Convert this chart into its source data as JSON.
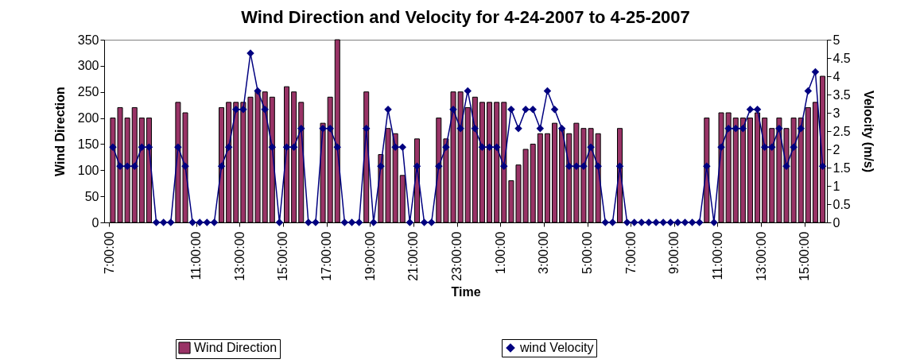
{
  "chart_data": {
    "type": "bar",
    "title": "Wind Direction and Velocity for 4-24-2007 to 4-25-2007",
    "xlabel": "Time",
    "ylabel": "Wind Direction",
    "y2label": "Velocity (m/s)",
    "x": [
      "2007-04-24T07:10",
      "2007-04-24T07:30",
      "2007-04-24T07:50",
      "2007-04-24T08:10",
      "2007-04-24T08:30",
      "2007-04-24T08:50",
      "2007-04-24T09:10",
      "2007-04-24T09:30",
      "2007-04-24T09:50",
      "2007-04-24T10:10",
      "2007-04-24T10:30",
      "2007-04-24T10:50",
      "2007-04-24T11:10",
      "2007-04-24T11:30",
      "2007-04-24T11:50",
      "2007-04-24T12:10",
      "2007-04-24T12:30",
      "2007-04-24T12:50",
      "2007-04-24T13:10",
      "2007-04-24T13:30",
      "2007-04-24T13:50",
      "2007-04-24T14:10",
      "2007-04-24T14:30",
      "2007-04-24T14:50",
      "2007-04-24T15:10",
      "2007-04-24T15:30",
      "2007-04-24T15:50",
      "2007-04-24T16:10",
      "2007-04-24T16:30",
      "2007-04-24T16:50",
      "2007-04-24T17:10",
      "2007-04-24T17:30",
      "2007-04-24T17:50",
      "2007-04-24T18:10",
      "2007-04-24T18:30",
      "2007-04-24T18:50",
      "2007-04-24T19:10",
      "2007-04-24T19:30",
      "2007-04-24T19:50",
      "2007-04-24T20:10",
      "2007-04-24T20:30",
      "2007-04-24T20:50",
      "2007-04-24T21:10",
      "2007-04-24T21:30",
      "2007-04-24T21:50",
      "2007-04-24T22:10",
      "2007-04-24T22:30",
      "2007-04-24T22:50",
      "2007-04-24T23:10",
      "2007-04-24T23:30",
      "2007-04-24T23:50",
      "2007-04-25T00:10",
      "2007-04-25T00:30",
      "2007-04-25T00:50",
      "2007-04-25T01:10",
      "2007-04-25T01:30",
      "2007-04-25T01:50",
      "2007-04-25T02:10",
      "2007-04-25T02:30",
      "2007-04-25T02:50",
      "2007-04-25T03:10",
      "2007-04-25T03:30",
      "2007-04-25T03:50",
      "2007-04-25T04:10",
      "2007-04-25T04:30",
      "2007-04-25T04:50",
      "2007-04-25T05:10",
      "2007-04-25T05:30",
      "2007-04-25T05:50",
      "2007-04-25T06:10",
      "2007-04-25T06:30",
      "2007-04-25T06:50",
      "2007-04-25T07:10",
      "2007-04-25T07:30",
      "2007-04-25T07:50",
      "2007-04-25T08:10",
      "2007-04-25T08:30",
      "2007-04-25T08:50",
      "2007-04-25T09:10",
      "2007-04-25T09:30",
      "2007-04-25T09:50",
      "2007-04-25T10:10",
      "2007-04-25T10:30",
      "2007-04-25T10:50",
      "2007-04-25T11:10",
      "2007-04-25T11:30",
      "2007-04-25T11:50",
      "2007-04-25T12:10",
      "2007-04-25T12:30",
      "2007-04-25T12:50",
      "2007-04-25T13:10",
      "2007-04-25T13:30",
      "2007-04-25T13:50",
      "2007-04-25T14:10",
      "2007-04-25T14:30",
      "2007-04-25T14:50",
      "2007-04-25T15:10",
      "2007-04-25T15:30",
      "2007-04-25T15:50"
    ],
    "series": [
      {
        "name": "Wind Direction",
        "color": "#993366",
        "values": [
          200,
          220,
          200,
          220,
          200,
          200,
          0,
          0,
          0,
          230,
          210,
          0,
          0,
          0,
          0,
          220,
          230,
          230,
          230,
          240,
          250,
          250,
          240,
          0,
          260,
          250,
          230,
          0,
          0,
          190,
          240,
          350,
          0,
          0,
          0,
          250,
          0,
          130,
          180,
          170,
          90,
          0,
          160,
          0,
          0,
          200,
          160,
          250,
          250,
          220,
          240,
          230,
          230,
          230,
          230,
          80,
          110,
          140,
          150,
          170,
          170,
          190,
          180,
          170,
          190,
          180,
          180,
          170,
          0,
          0,
          180,
          0,
          0,
          0,
          0,
          0,
          0,
          0,
          0,
          0,
          0,
          0,
          200,
          0,
          210,
          210,
          200,
          200,
          200,
          210,
          200,
          180,
          200,
          180,
          200,
          200,
          220,
          230,
          280
        ]
      },
      {
        "name": "wind Velocity",
        "type": "line",
        "axis": "y2",
        "color": "#000080",
        "values": [
          2.06,
          1.54,
          1.54,
          1.54,
          2.06,
          2.06,
          0,
          0,
          0,
          2.06,
          1.54,
          0,
          0,
          0,
          0,
          1.54,
          2.06,
          3.09,
          3.09,
          4.63,
          3.6,
          3.09,
          2.06,
          0,
          2.06,
          2.06,
          2.57,
          0,
          0,
          2.57,
          2.57,
          2.06,
          0,
          0,
          0,
          2.57,
          0,
          1.54,
          3.09,
          2.06,
          2.06,
          0,
          1.54,
          0,
          0,
          1.54,
          2.06,
          3.09,
          2.57,
          3.6,
          2.57,
          2.06,
          2.06,
          2.06,
          1.54,
          3.09,
          2.57,
          3.09,
          3.09,
          2.57,
          3.6,
          3.09,
          2.57,
          1.54,
          1.54,
          1.54,
          2.06,
          1.54,
          0,
          0,
          1.54,
          0,
          0,
          0,
          0,
          0,
          0,
          0,
          0,
          0,
          0,
          0,
          1.54,
          0,
          2.06,
          2.57,
          2.57,
          2.57,
          3.09,
          3.09,
          2.06,
          2.06,
          2.57,
          1.54,
          2.06,
          2.57,
          3.6,
          4.12,
          1.54
        ]
      }
    ],
    "xlim": [
      "2007-04-24T06:57",
      "2007-04-25T15:51"
    ],
    "xticks": [
      {
        "value": "2007-04-24T07:00",
        "label": "7:00:00"
      },
      {
        "value": "2007-04-24T11:00",
        "label": "11:00:00"
      },
      {
        "value": "2007-04-24T13:00",
        "label": "13:00:00"
      },
      {
        "value": "2007-04-24T15:00",
        "label": "15:00:00"
      },
      {
        "value": "2007-04-24T17:00",
        "label": "17:00:00"
      },
      {
        "value": "2007-04-24T19:00",
        "label": "19:00:00"
      },
      {
        "value": "2007-04-24T21:00",
        "label": "21:00:00"
      },
      {
        "value": "2007-04-24T23:00",
        "label": "23:00:00"
      },
      {
        "value": "2007-04-25T01:00",
        "label": "1:00:00"
      },
      {
        "value": "2007-04-25T03:00",
        "label": "3:00:00"
      },
      {
        "value": "2007-04-25T05:00",
        "label": "5:00:00"
      },
      {
        "value": "2007-04-25T07:00",
        "label": "7:00:00"
      },
      {
        "value": "2007-04-25T09:00",
        "label": "9:00:00"
      },
      {
        "value": "2007-04-25T11:00",
        "label": "11:00:00"
      },
      {
        "value": "2007-04-25T13:00",
        "label": "13:00:00"
      },
      {
        "value": "2007-04-25T15:00",
        "label": "15:00:00"
      }
    ],
    "ylim": [
      0,
      350
    ],
    "yticks": [
      0,
      50,
      100,
      150,
      200,
      250,
      300,
      350
    ],
    "y2lim": [
      0,
      5
    ],
    "y2ticks": [
      0,
      0.5,
      1,
      1.5,
      2,
      2.5,
      3,
      3.5,
      4,
      4.5,
      5
    ],
    "legend": "bottom",
    "marker": "diamond"
  }
}
